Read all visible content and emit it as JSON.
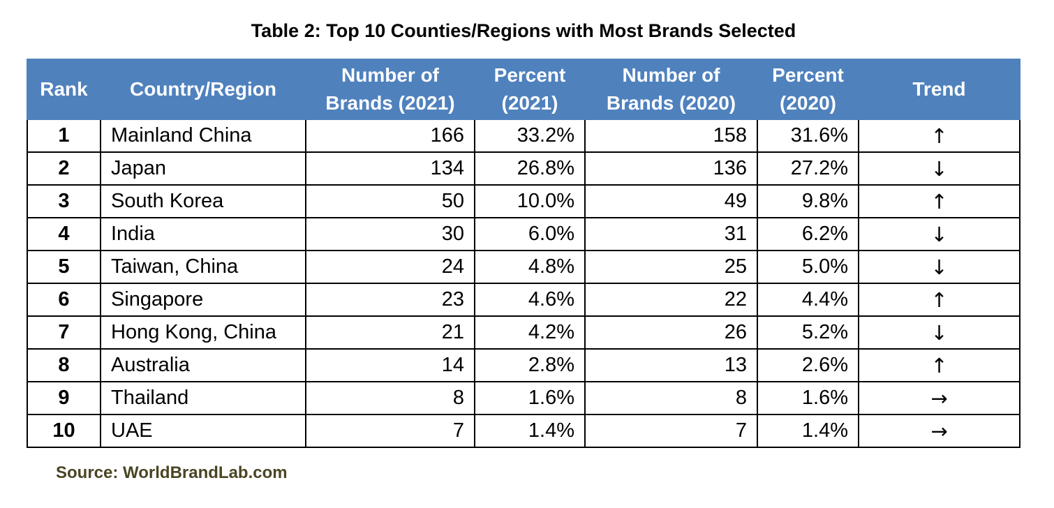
{
  "title": "Table 2: Top 10 Counties/Regions with Most Brands Selected",
  "headers": {
    "rank": "Rank",
    "country": "Country/Region",
    "brands2021_a": "Number of",
    "brands2021_b": "Brands (2021)",
    "pct2021_a": "Percent",
    "pct2021_b": "(2021)",
    "brands2020_a": "Number of",
    "brands2020_b": "Brands (2020)",
    "pct2020_a": "Percent",
    "pct2020_b": "(2020)",
    "trend": "Trend"
  },
  "colors": {
    "header_bg": "#4f81bd",
    "header_text": "#ffffff",
    "source_text": "#4a4523"
  },
  "rows": [
    {
      "rank": "1",
      "country": "Mainland China",
      "brands2021": "166",
      "pct2021": "33.2%",
      "brands2020": "158",
      "pct2020": "31.6%",
      "trend": "↑",
      "trend_icon": "arrow-up-icon"
    },
    {
      "rank": "2",
      "country": "Japan",
      "brands2021": "134",
      "pct2021": "26.8%",
      "brands2020": "136",
      "pct2020": "27.2%",
      "trend": "↓",
      "trend_icon": "arrow-down-icon"
    },
    {
      "rank": "3",
      "country": "South Korea",
      "brands2021": "50",
      "pct2021": "10.0%",
      "brands2020": "49",
      "pct2020": "9.8%",
      "trend": "↑",
      "trend_icon": "arrow-up-icon"
    },
    {
      "rank": "4",
      "country": "India",
      "brands2021": "30",
      "pct2021": "6.0%",
      "brands2020": "31",
      "pct2020": "6.2%",
      "trend": "↓",
      "trend_icon": "arrow-down-icon"
    },
    {
      "rank": "5",
      "country": "Taiwan, China",
      "brands2021": "24",
      "pct2021": "4.8%",
      "brands2020": "25",
      "pct2020": "5.0%",
      "trend": "↓",
      "trend_icon": "arrow-down-icon"
    },
    {
      "rank": "6",
      "country": "Singapore",
      "brands2021": "23",
      "pct2021": "4.6%",
      "brands2020": "22",
      "pct2020": "4.4%",
      "trend": "↑",
      "trend_icon": "arrow-up-icon"
    },
    {
      "rank": "7",
      "country": "Hong Kong, China",
      "brands2021": "21",
      "pct2021": "4.2%",
      "brands2020": "26",
      "pct2020": "5.2%",
      "trend": "↓",
      "trend_icon": "arrow-down-icon"
    },
    {
      "rank": "8",
      "country": "Australia",
      "brands2021": "14",
      "pct2021": "2.8%",
      "brands2020": "13",
      "pct2020": "2.6%",
      "trend": "↑",
      "trend_icon": "arrow-up-icon"
    },
    {
      "rank": "9",
      "country": "Thailand",
      "brands2021": "8",
      "pct2021": "1.6%",
      "brands2020": "8",
      "pct2020": "1.6%",
      "trend": "→",
      "trend_icon": "arrow-right-icon"
    },
    {
      "rank": "10",
      "country": "UAE",
      "brands2021": "7",
      "pct2021": "1.4%",
      "brands2020": "7",
      "pct2020": "1.4%",
      "trend": "→",
      "trend_icon": "arrow-right-icon"
    }
  ],
  "source": "Source: WorldBrandLab.com"
}
